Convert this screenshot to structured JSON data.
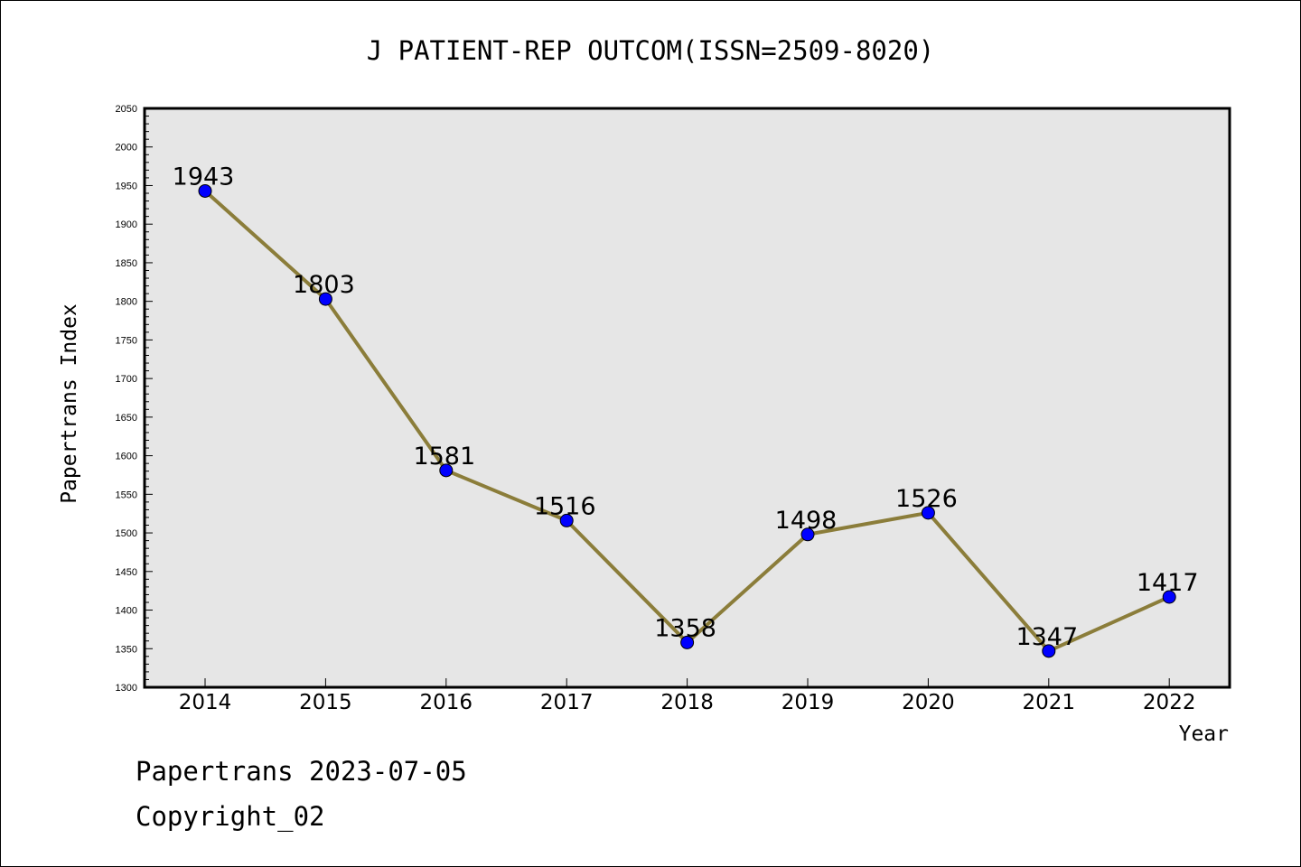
{
  "chart_data": {
    "type": "line",
    "title": "J PATIENT-REP OUTCOM(ISSN=2509-8020)",
    "xlabel": "Year",
    "ylabel": "Papertrans Index",
    "categories": [
      "2014",
      "2015",
      "2016",
      "2017",
      "2018",
      "2019",
      "2020",
      "2021",
      "2022"
    ],
    "values": [
      1943,
      1803,
      1581,
      1516,
      1358,
      1498,
      1526,
      1347,
      1417
    ],
    "data_labels": [
      "1943",
      "1803",
      "1581",
      "1516",
      "1358",
      "1498",
      "1526",
      "1347",
      "1417"
    ],
    "ylim": [
      1300,
      2050
    ],
    "yticks": [
      1300,
      1350,
      1400,
      1450,
      1500,
      1550,
      1600,
      1650,
      1700,
      1750,
      1800,
      1850,
      1900,
      1950,
      2000,
      2050
    ],
    "grid": false,
    "plot_background": "#e6e6e6",
    "line_color": "#8b7d3a",
    "marker_color": "#0000ff"
  },
  "footer": {
    "line1": "Papertrans 2023-07-05",
    "line2": "Copyright_02"
  }
}
